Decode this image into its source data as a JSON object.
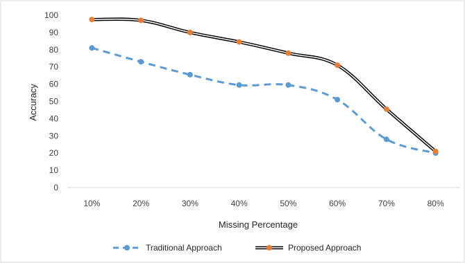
{
  "chart_data": {
    "type": "line",
    "title": "",
    "xlabel": "Missing Percentage",
    "ylabel": "Accuracy",
    "categories": [
      "10%",
      "20%",
      "30%",
      "40%",
      "50%",
      "60%",
      "70%",
      "80%"
    ],
    "yticks": [
      "0",
      "10",
      "20",
      "30",
      "40",
      "50",
      "60",
      "70",
      "80",
      "90",
      "100"
    ],
    "ylim": [
      0,
      100
    ],
    "grid": false,
    "legend_position": "bottom",
    "series": [
      {
        "name": "Traditional Approach",
        "values": [
          81,
          73,
          65.5,
          59.5,
          59.5,
          51,
          28,
          20
        ],
        "color": "#5b9bd5",
        "style": "dashed",
        "marker": "circle"
      },
      {
        "name": "Proposed Approach",
        "values": [
          97.5,
          97,
          90,
          84.5,
          78,
          71,
          45.5,
          21
        ],
        "color": "#000000",
        "style": "double-line",
        "marker_color": "#ed7d31",
        "marker": "circle"
      }
    ]
  }
}
